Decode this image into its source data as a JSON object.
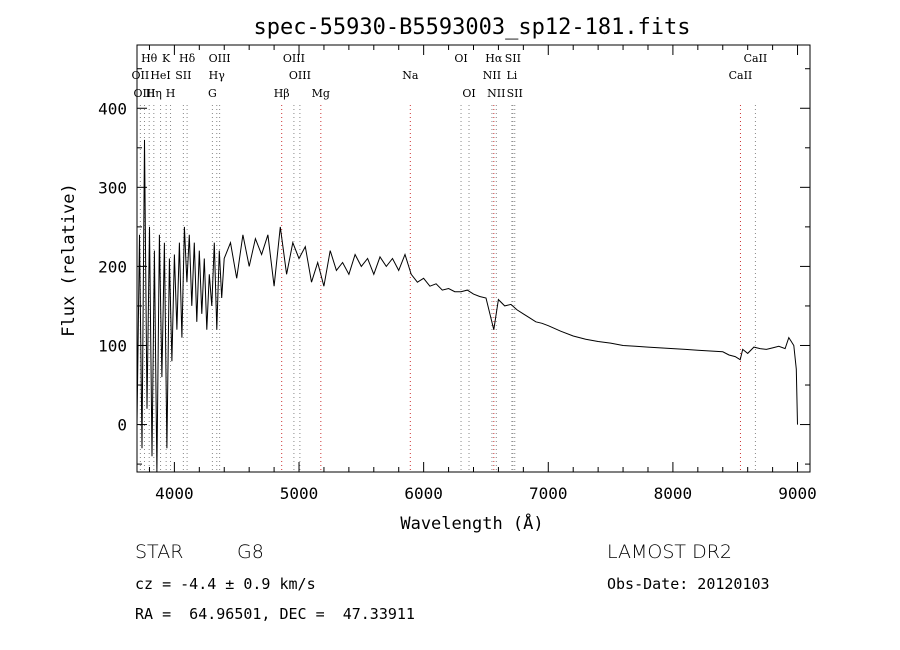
{
  "chart_data": {
    "type": "line",
    "title": "spec-55930-B5593003_sp12-181.fits",
    "xlabel": "Wavelength (Å)",
    "ylabel": "Flux (relative)",
    "xlim": [
      3700,
      9100
    ],
    "ylim": [
      -60,
      480
    ],
    "xticks": [
      4000,
      5000,
      6000,
      7000,
      8000,
      9000
    ],
    "yticks": [
      0,
      100,
      200,
      300,
      400
    ],
    "grid": false,
    "series": [
      {
        "color": "#000000",
        "x": [
          3700,
          3720,
          3740,
          3760,
          3780,
          3800,
          3820,
          3840,
          3860,
          3880,
          3900,
          3920,
          3940,
          3960,
          3980,
          4000,
          4020,
          4040,
          4060,
          4080,
          4100,
          4120,
          4140,
          4160,
          4180,
          4200,
          4220,
          4240,
          4260,
          4280,
          4300,
          4320,
          4340,
          4360,
          4380,
          4400,
          4450,
          4500,
          4550,
          4600,
          4650,
          4700,
          4750,
          4800,
          4850,
          4900,
          4950,
          5000,
          5050,
          5100,
          5150,
          5200,
          5250,
          5300,
          5350,
          5400,
          5450,
          5500,
          5550,
          5600,
          5650,
          5700,
          5750,
          5800,
          5850,
          5900,
          5950,
          6000,
          6050,
          6100,
          6150,
          6200,
          6250,
          6300,
          6350,
          6400,
          6450,
          6500,
          6563,
          6600,
          6650,
          6700,
          6750,
          6800,
          6850,
          6900,
          6950,
          7000,
          7100,
          7200,
          7300,
          7400,
          7500,
          7600,
          7700,
          7800,
          7900,
          8000,
          8100,
          8200,
          8300,
          8400,
          8450,
          8500,
          8540,
          8560,
          8600,
          8650,
          8700,
          8750,
          8800,
          8850,
          8900,
          8930,
          8950,
          8970,
          8990,
          9000
        ],
        "values": [
          0,
          240,
          -30,
          360,
          20,
          250,
          -40,
          220,
          -60,
          240,
          60,
          230,
          -30,
          210,
          80,
          215,
          120,
          230,
          110,
          250,
          180,
          240,
          150,
          230,
          130,
          220,
          140,
          210,
          120,
          190,
          150,
          230,
          120,
          220,
          160,
          210,
          230,
          185,
          240,
          200,
          235,
          215,
          240,
          175,
          250,
          190,
          230,
          210,
          225,
          180,
          205,
          175,
          220,
          195,
          205,
          190,
          215,
          200,
          210,
          190,
          212,
          200,
          210,
          195,
          215,
          190,
          180,
          185,
          175,
          178,
          170,
          172,
          168,
          168,
          170,
          165,
          162,
          160,
          120,
          158,
          150,
          152,
          145,
          140,
          135,
          130,
          128,
          125,
          118,
          112,
          108,
          105,
          103,
          100,
          99,
          98,
          97,
          96,
          95,
          94,
          93,
          92,
          88,
          86,
          82,
          95,
          90,
          98,
          96,
          95,
          97,
          99,
          96,
          110,
          105,
          100,
          70,
          0
        ]
      }
    ],
    "lines": [
      {
        "label": "Hθ",
        "x": 3798,
        "row": 1,
        "color": "#888888"
      },
      {
        "label": "OII",
        "x": 3727,
        "row": 2,
        "color": "#888888"
      },
      {
        "label": "OIII",
        "x": 3760,
        "row": 3,
        "color": "#888888"
      },
      {
        "label": "K",
        "x": 3934,
        "row": 1,
        "color": "#888888"
      },
      {
        "label": "HeI",
        "x": 3889,
        "row": 2,
        "color": "#888888"
      },
      {
        "label": "Hη",
        "x": 3835,
        "row": 3,
        "color": "#888888"
      },
      {
        "label": "H",
        "x": 3969,
        "row": 3,
        "color": "#888888"
      },
      {
        "label": "SII",
        "x": 4072,
        "row": 2,
        "color": "#888888"
      },
      {
        "label": "Hδ",
        "x": 4102,
        "row": 1,
        "color": "#888888"
      },
      {
        "label": "OIII",
        "x": 4363,
        "row": 1,
        "color": "#888888"
      },
      {
        "label": "Hγ",
        "x": 4340,
        "row": 2,
        "color": "#888888"
      },
      {
        "label": "G",
        "x": 4305,
        "row": 3,
        "color": "#888888"
      },
      {
        "label": "Hβ",
        "x": 4861,
        "row": 3,
        "color": "#cc3333"
      },
      {
        "label": "OIII",
        "x": 4959,
        "row": 1,
        "color": "#888888"
      },
      {
        "label": "OIII",
        "x": 5007,
        "row": 2,
        "color": "#888888"
      },
      {
        "label": "Mg",
        "x": 5175,
        "row": 3,
        "color": "#cc3333"
      },
      {
        "label": "Na",
        "x": 5893,
        "row": 2,
        "color": "#cc3333"
      },
      {
        "label": "OI",
        "x": 6300,
        "row": 1,
        "color": "#888888"
      },
      {
        "label": "OI",
        "x": 6364,
        "row": 3,
        "color": "#888888"
      },
      {
        "label": "Hα",
        "x": 6563,
        "row": 1,
        "color": "#cc3333"
      },
      {
        "label": "NII",
        "x": 6548,
        "row": 2,
        "color": "#888888"
      },
      {
        "label": "NII",
        "x": 6583,
        "row": 3,
        "color": "#888888"
      },
      {
        "label": "SII",
        "x": 6716,
        "row": 1,
        "color": "#888888"
      },
      {
        "label": "Li",
        "x": 6708,
        "row": 2,
        "color": "#888888"
      },
      {
        "label": "SII",
        "x": 6731,
        "row": 3,
        "color": "#888888"
      },
      {
        "label": "CaII",
        "x": 8662,
        "row": 1,
        "color": "#888888"
      },
      {
        "label": "CaII",
        "x": 8542,
        "row": 2,
        "color": "#cc3333"
      }
    ]
  },
  "info": {
    "object_class": "STAR",
    "subclass": "G8",
    "survey": "LAMOST DR2",
    "cz": "cz = -4.4 ± 0.9 km/s",
    "obs_date": "Obs-Date: 20120103",
    "radec": "RA =  64.96501, DEC =  47.33911"
  }
}
